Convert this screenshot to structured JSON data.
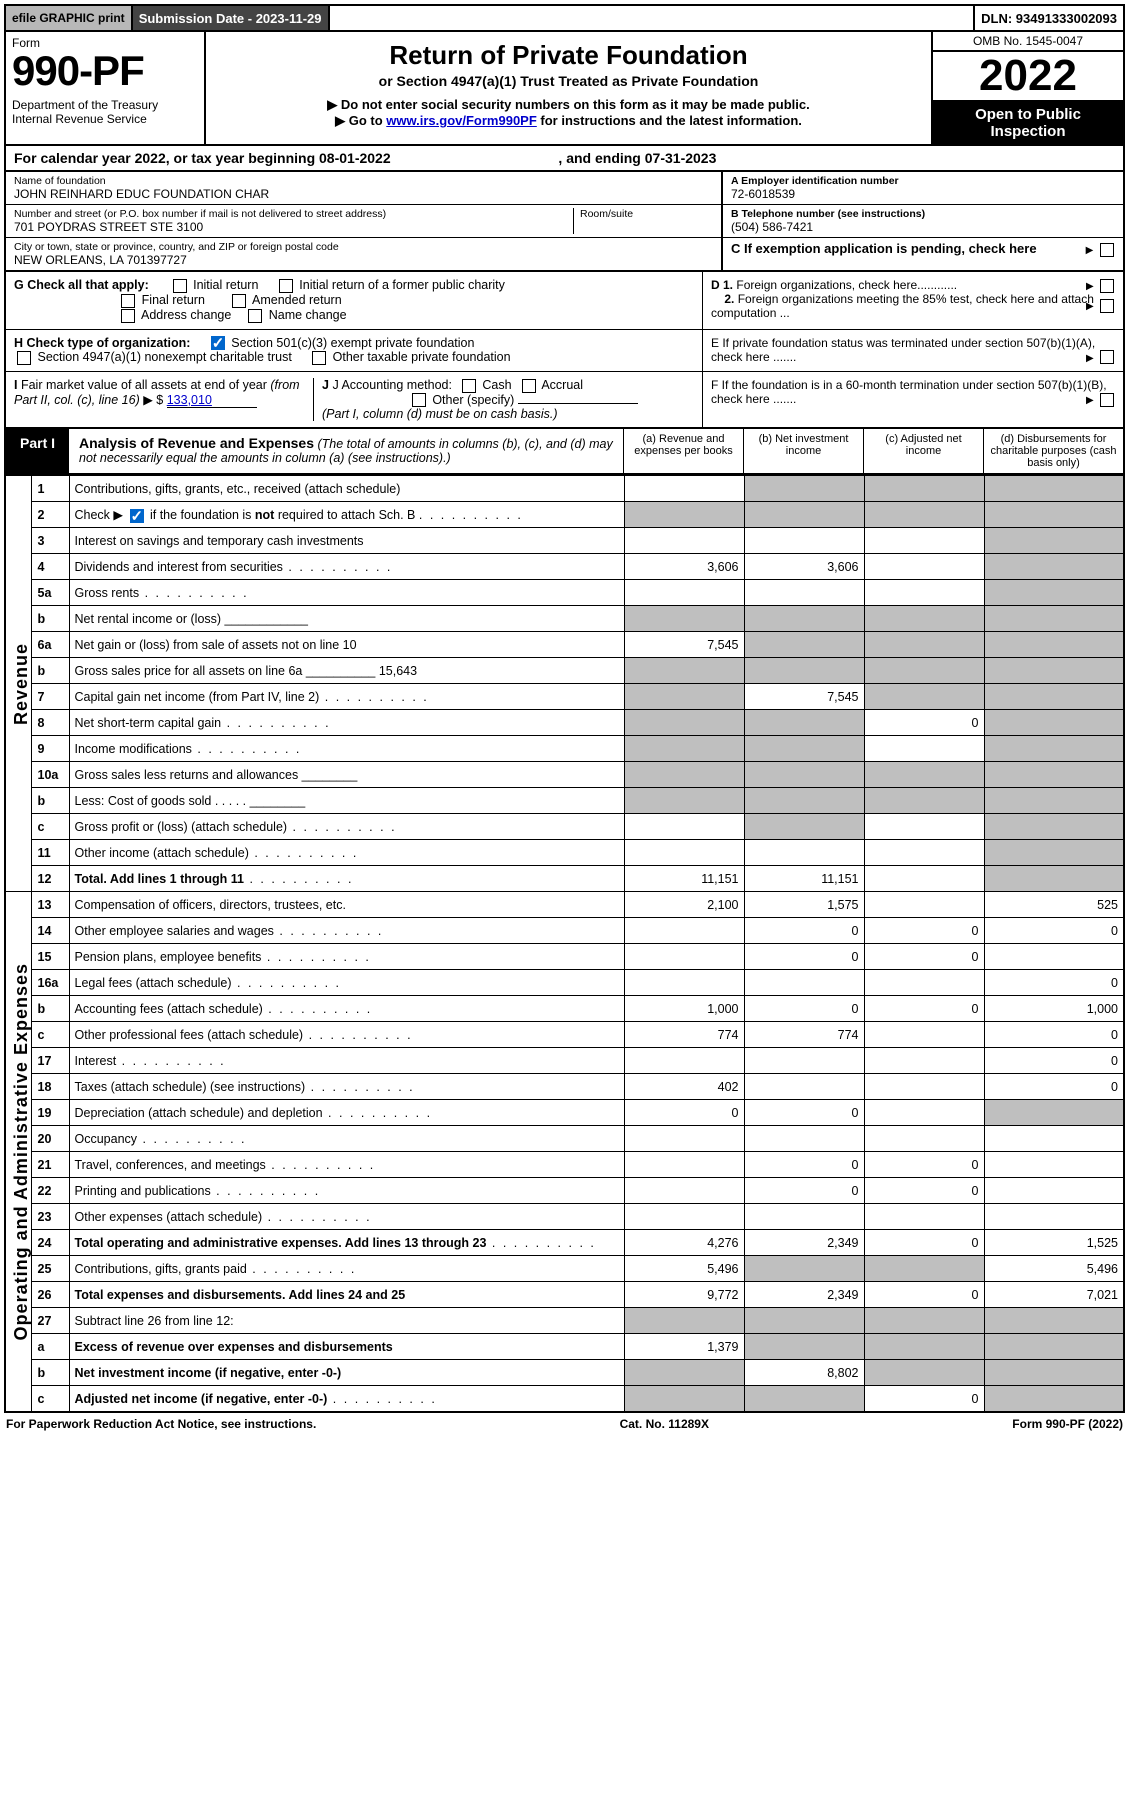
{
  "topstrip": {
    "efile": "efile GRAPHIC print",
    "submission_label": "Submission Date - 2023-11-29",
    "dln": "DLN: 93491333002093"
  },
  "header": {
    "form_label": "Form",
    "form_number": "990-PF",
    "dept": "Department of the Treasury",
    "irs": "Internal Revenue Service",
    "title": "Return of Private Foundation",
    "subtitle": "or Section 4947(a)(1) Trust Treated as Private Foundation",
    "line1": "▶ Do not enter social security numbers on this form as it may be made public.",
    "line2_pre": "▶ Go to ",
    "line2_link": "www.irs.gov/Form990PF",
    "line2_post": " for instructions and the latest information.",
    "omb": "OMB No. 1545-0047",
    "year": "2022",
    "otp1": "Open to Public",
    "otp2": "Inspection"
  },
  "cal": {
    "text_a": "For calendar year 2022, or tax year beginning ",
    "begin": "08-01-2022",
    "text_b": ", and ending ",
    "end": "07-31-2023"
  },
  "ident": {
    "name_lbl": "Name of foundation",
    "name": "JOHN REINHARD EDUC FOUNDATION CHAR",
    "addr_lbl": "Number and street (or P.O. box number if mail is not delivered to street address)",
    "addr": "701 POYDRAS STREET STE 3100",
    "room_lbl": "Room/suite",
    "city_lbl": "City or town, state or province, country, and ZIP or foreign postal code",
    "city": "NEW ORLEANS, LA  701397727",
    "ein_lbl": "A Employer identification number",
    "ein": "72-6018539",
    "phone_lbl": "B Telephone number (see instructions)",
    "phone": "(504) 586-7421",
    "pending_lbl": "C If exemption application is pending, check here"
  },
  "checks": {
    "g_lbl": "G Check all that apply:",
    "g_opts": [
      "Initial return",
      "Initial return of a former public charity",
      "Final return",
      "Amended return",
      "Address change",
      "Name change"
    ],
    "h_lbl": "H Check type of organization:",
    "h_opt1": "Section 501(c)(3) exempt private foundation",
    "h_opt2": "Section 4947(a)(1) nonexempt charitable trust",
    "h_opt3": "Other taxable private foundation",
    "i_lbl": "I Fair market value of all assets at end of year (from Part II, col. (c), line 16) ▶ $",
    "i_val": "133,010",
    "j_lbl": "J Accounting method:",
    "j_cash": "Cash",
    "j_accrual": "Accrual",
    "j_other": "Other (specify)",
    "j_note": "(Part I, column (d) must be on cash basis.)",
    "d1": "D 1. Foreign organizations, check here............",
    "d2": "2. Foreign organizations meeting the 85% test, check here and attach computation ...",
    "e": "E  If private foundation status was terminated under section 507(b)(1)(A), check here .......",
    "f": "F  If the foundation is in a 60-month termination under section 507(b)(1)(B), check here .......",
    "schb_lead": "Check ▶",
    "schb_txt": " if the foundation is ",
    "schb_not": "not",
    "schb_txt2": " required to attach Sch. B"
  },
  "part1": {
    "tab": "Part I",
    "title_b": "Analysis of Revenue and Expenses",
    "title_rest": " (The total of amounts in columns (b), (c), and (d) may not necessarily equal the amounts in column (a) (see instructions).)",
    "col_a": "(a)   Revenue and expenses per books",
    "col_b": "(b)   Net investment income",
    "col_c": "(c)   Adjusted net income",
    "col_d": "(d)  Disbursements for charitable purposes (cash basis only)"
  },
  "sections": {
    "revenue": "Revenue",
    "opex": "Operating and Administrative Expenses"
  },
  "rows": [
    {
      "n": "1",
      "d": "Contributions, gifts, grants, etc., received (attach schedule)",
      "a": "",
      "b": "__g",
      "c": "__g",
      "e": "__g"
    },
    {
      "n": "2",
      "d": "__SCHB",
      "a": "__g",
      "b": "__g",
      "c": "__g",
      "e": "__g"
    },
    {
      "n": "3",
      "d": "Interest on savings and temporary cash investments",
      "a": "",
      "b": "",
      "c": "",
      "e": "__g"
    },
    {
      "n": "4",
      "d": "Dividends and interest from securities",
      "dots": true,
      "a": "3,606",
      "b": "3,606",
      "c": "",
      "e": "__g"
    },
    {
      "n": "5a",
      "d": "Gross rents",
      "dots": true,
      "a": "",
      "b": "",
      "c": "",
      "e": "__g"
    },
    {
      "n": "b",
      "d": "Net rental income or (loss)  ____________",
      "a": "__g",
      "b": "__g",
      "c": "__g",
      "e": "__g"
    },
    {
      "n": "6a",
      "d": "Net gain or (loss) from sale of assets not on line 10",
      "a": "7,545",
      "b": "__g",
      "c": "__g",
      "e": "__g"
    },
    {
      "n": "b",
      "d": "Gross sales price for all assets on line 6a __________   15,643",
      "a": "__g",
      "b": "__g",
      "c": "__g",
      "e": "__g"
    },
    {
      "n": "7",
      "d": "Capital gain net income (from Part IV, line 2)",
      "dots": true,
      "a": "__g",
      "b": "7,545",
      "c": "__g",
      "e": "__g"
    },
    {
      "n": "8",
      "d": "Net short-term capital gain",
      "dots": true,
      "a": "__g",
      "b": "__g",
      "c": "0",
      "e": "__g"
    },
    {
      "n": "9",
      "d": "Income modifications",
      "dots": true,
      "a": "__g",
      "b": "__g",
      "c": "",
      "e": "__g"
    },
    {
      "n": "10a",
      "d": "Gross sales less returns and allowances   ________",
      "a": "__g",
      "b": "__g",
      "c": "__g",
      "e": "__g"
    },
    {
      "n": "b",
      "d": "Less: Cost of goods sold     .  .  .  .  .   ________",
      "a": "__g",
      "b": "__g",
      "c": "__g",
      "e": "__g"
    },
    {
      "n": "c",
      "d": "Gross profit or (loss) (attach schedule)",
      "dots": true,
      "a": "",
      "b": "__g",
      "c": "",
      "e": "__g"
    },
    {
      "n": "11",
      "d": "Other income (attach schedule)",
      "dots": true,
      "a": "",
      "b": "",
      "c": "",
      "e": "__g"
    },
    {
      "n": "12",
      "d": "Total. Add lines 1 through 11",
      "bold": true,
      "dots": true,
      "a": "11,151",
      "b": "11,151",
      "c": "",
      "e": "__g"
    },
    {
      "n": "13",
      "d": "Compensation of officers, directors, trustees, etc.",
      "a": "2,100",
      "b": "1,575",
      "c": "",
      "e": "525"
    },
    {
      "n": "14",
      "d": "Other employee salaries and wages",
      "dots": true,
      "a": "",
      "b": "0",
      "c": "0",
      "e": "0"
    },
    {
      "n": "15",
      "d": "Pension plans, employee benefits",
      "dots": true,
      "a": "",
      "b": "0",
      "c": "0",
      "e": ""
    },
    {
      "n": "16a",
      "d": "Legal fees (attach schedule)",
      "dots": true,
      "a": "",
      "b": "",
      "c": "",
      "e": "0"
    },
    {
      "n": "b",
      "d": "Accounting fees (attach schedule)",
      "dots": true,
      "a": "1,000",
      "b": "0",
      "c": "0",
      "e": "1,000"
    },
    {
      "n": "c",
      "d": "Other professional fees (attach schedule)",
      "dots": true,
      "a": "774",
      "b": "774",
      "c": "",
      "e": "0"
    },
    {
      "n": "17",
      "d": "Interest",
      "dots": true,
      "a": "",
      "b": "",
      "c": "",
      "e": "0"
    },
    {
      "n": "18",
      "d": "Taxes (attach schedule) (see instructions)",
      "dots": true,
      "a": "402",
      "b": "",
      "c": "",
      "e": "0"
    },
    {
      "n": "19",
      "d": "Depreciation (attach schedule) and depletion",
      "dots": true,
      "a": "0",
      "b": "0",
      "c": "",
      "e": "__g"
    },
    {
      "n": "20",
      "d": "Occupancy",
      "dots": true,
      "a": "",
      "b": "",
      "c": "",
      "e": ""
    },
    {
      "n": "21",
      "d": "Travel, conferences, and meetings",
      "dots": true,
      "a": "",
      "b": "0",
      "c": "0",
      "e": ""
    },
    {
      "n": "22",
      "d": "Printing and publications",
      "dots": true,
      "a": "",
      "b": "0",
      "c": "0",
      "e": ""
    },
    {
      "n": "23",
      "d": "Other expenses (attach schedule)",
      "dots": true,
      "a": "",
      "b": "",
      "c": "",
      "e": ""
    },
    {
      "n": "24",
      "d": "Total operating and administrative expenses. Add lines 13 through 23",
      "bold": true,
      "dots": true,
      "a": "4,276",
      "b": "2,349",
      "c": "0",
      "e": "1,525"
    },
    {
      "n": "25",
      "d": "Contributions, gifts, grants paid",
      "dots": true,
      "a": "5,496",
      "b": "__g",
      "c": "__g",
      "e": "5,496"
    },
    {
      "n": "26",
      "d": "Total expenses and disbursements. Add lines 24 and 25",
      "bold": true,
      "a": "9,772",
      "b": "2,349",
      "c": "0",
      "e": "7,021"
    },
    {
      "n": "27",
      "d": "Subtract line 26 from line 12:",
      "a": "__g",
      "b": "__g",
      "c": "__g",
      "e": "__g"
    },
    {
      "n": "a",
      "d": "Excess of revenue over expenses and disbursements",
      "bold": true,
      "a": "1,379",
      "b": "__g",
      "c": "__g",
      "e": "__g"
    },
    {
      "n": "b",
      "d": "Net investment income (if negative, enter -0-)",
      "bold": true,
      "a": "__g",
      "b": "8,802",
      "c": "__g",
      "e": "__g"
    },
    {
      "n": "c",
      "d": "Adjusted net income (if negative, enter -0-)",
      "bold": true,
      "dots": true,
      "a": "__g",
      "b": "__g",
      "c": "0",
      "e": "__g"
    }
  ],
  "footer": {
    "left": "For Paperwork Reduction Act Notice, see instructions.",
    "mid": "Cat. No. 11289X",
    "right": "Form 990-PF (2022)"
  }
}
